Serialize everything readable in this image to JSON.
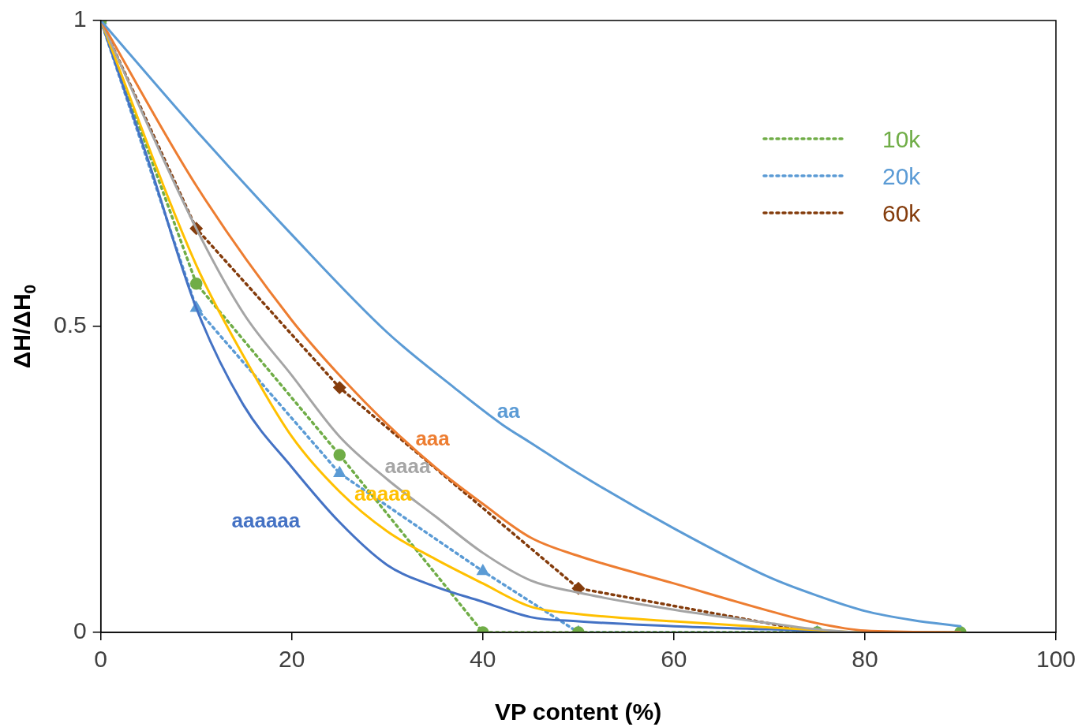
{
  "chart_data": {
    "type": "line",
    "xlabel": "VP content (%)",
    "ylabel": "ΔH/ΔH$_{0}$",
    "xlim": [
      0,
      100
    ],
    "xticks": [
      0,
      20,
      40,
      60,
      80,
      100
    ],
    "ylim": [
      0,
      1
    ],
    "yticks": [
      0,
      0.5,
      1
    ],
    "grid": false,
    "legend": "top right",
    "series": [
      {
        "name": "aa",
        "color": "#5b9bd5",
        "line_style": "solid",
        "marker": "none",
        "x": [
          0,
          10,
          20,
          30,
          37,
          42,
          45,
          50,
          60,
          70,
          75,
          80,
          85,
          90
        ],
        "values": [
          1,
          0.82,
          0.65,
          0.49,
          0.4,
          0.34,
          0.31,
          0.26,
          0.17,
          0.09,
          0.06,
          0.035,
          0.02,
          0.01
        ]
      },
      {
        "name": "aaa",
        "color": "#ed7d31",
        "line_style": "solid",
        "marker": "none",
        "x": [
          0,
          10,
          20,
          25,
          30,
          35,
          40,
          45,
          50,
          60,
          70,
          75,
          80,
          90
        ],
        "values": [
          1,
          0.73,
          0.51,
          0.42,
          0.34,
          0.27,
          0.21,
          0.155,
          0.125,
          0.08,
          0.035,
          0.015,
          0.003,
          0
        ]
      },
      {
        "name": "aaaa",
        "color": "#a5a5a5",
        "line_style": "solid",
        "marker": "none",
        "x": [
          0,
          10,
          15,
          20,
          25,
          30,
          35,
          40,
          45,
          50,
          60,
          70,
          75,
          80,
          90
        ],
        "values": [
          1,
          0.66,
          0.52,
          0.42,
          0.32,
          0.25,
          0.19,
          0.13,
          0.085,
          0.065,
          0.037,
          0.015,
          0.005,
          0,
          0
        ]
      },
      {
        "name": "aaaaa",
        "color": "#ffc000",
        "line_style": "solid",
        "marker": "none",
        "x": [
          0,
          10,
          15,
          20,
          25,
          30,
          35,
          40,
          45,
          50,
          60,
          70,
          75,
          80,
          90
        ],
        "values": [
          1,
          0.6,
          0.45,
          0.32,
          0.23,
          0.165,
          0.12,
          0.08,
          0.042,
          0.03,
          0.018,
          0.008,
          0.004,
          0,
          0
        ]
      },
      {
        "name": "aaaaaa",
        "color": "#4472c4",
        "line_style": "solid",
        "marker": "none",
        "x": [
          0,
          5,
          10,
          15,
          20,
          25,
          30,
          35,
          40,
          45,
          50,
          60,
          70,
          80,
          90
        ],
        "values": [
          1,
          0.77,
          0.53,
          0.37,
          0.27,
          0.18,
          0.11,
          0.075,
          0.05,
          0.025,
          0.018,
          0.01,
          0.005,
          0,
          0
        ]
      },
      {
        "name": "10k",
        "color": "#70ad47",
        "line_style": "dotted",
        "marker": "circle",
        "x": [
          0,
          10,
          25,
          40,
          50,
          75,
          90
        ],
        "values": [
          1,
          0.57,
          0.29,
          0,
          0,
          0,
          0
        ]
      },
      {
        "name": "20k",
        "color": "#5b9bd5",
        "line_style": "dotted",
        "marker": "triangle",
        "x": [
          0,
          10,
          25,
          40,
          50,
          75,
          90
        ],
        "values": [
          1,
          0.53,
          0.26,
          0.1,
          0,
          0,
          0
        ]
      },
      {
        "name": "60k",
        "color": "#843c0c",
        "line_style": "dotted",
        "marker": "diamond",
        "x": [
          0,
          10,
          25,
          50,
          75,
          90
        ],
        "values": [
          1,
          0.66,
          0.4,
          0.072,
          0,
          0
        ]
      }
    ]
  }
}
